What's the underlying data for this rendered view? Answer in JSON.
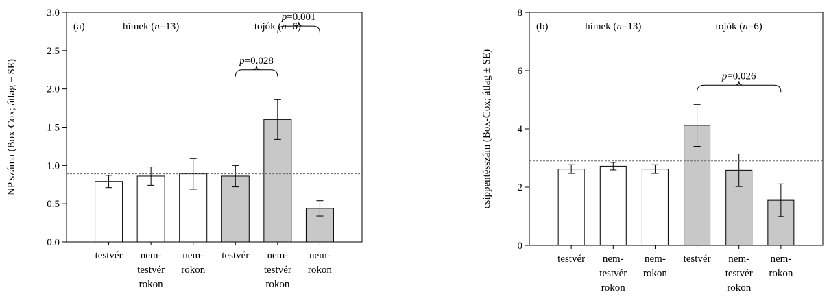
{
  "chart_data": [
    {
      "type": "bar",
      "panel_label": "(a)",
      "ylabel": "NP száma (Box-Cox; átlag ± SE)",
      "ylim": [
        0,
        3
      ],
      "yticks": [
        "0.0",
        "0.5",
        "1.0",
        "1.5",
        "2.0",
        "2.5",
        "3.0"
      ],
      "ytick_values": [
        0,
        0.5,
        1,
        1.5,
        2,
        2.5,
        3
      ],
      "categories": [
        [
          "testvér"
        ],
        [
          "nem-",
          "testvér",
          "rokon"
        ],
        [
          "nem-",
          "rokon"
        ],
        [
          "testvér"
        ],
        [
          "nem-",
          "testvér",
          "rokon"
        ],
        [
          "nem-",
          "rokon"
        ]
      ],
      "values": [
        0.79,
        0.86,
        0.89,
        0.86,
        1.6,
        0.44
      ],
      "errors": [
        0.08,
        0.12,
        0.2,
        0.14,
        0.26,
        0.1
      ],
      "group": [
        "himek",
        "himek",
        "himek",
        "tojok",
        "tojok",
        "tojok"
      ],
      "colors": {
        "himek": "#ffffff",
        "tojok": "#c8c8c8"
      },
      "reference_line": 0.89,
      "group_labels": [
        {
          "label": "hímek",
          "n_label": "n",
          "n_value": "=13)"
        },
        {
          "label": "tojók",
          "n_label": "n",
          "n_value": "=6)"
        }
      ],
      "annotations": [
        {
          "p": "p",
          "value": "=0.028",
          "from": 3,
          "to": 4,
          "level": 2.25
        },
        {
          "p": "p",
          "value": "=0.001",
          "from": 4,
          "to": 5,
          "level": 2.82
        }
      ]
    },
    {
      "type": "bar",
      "panel_label": "(b)",
      "ylabel": "csippentésszám (Box-Cox; átlag ± SE)",
      "ylim": [
        0,
        8
      ],
      "yticks": [
        "0",
        "2",
        "4",
        "6",
        "8"
      ],
      "ytick_values": [
        0,
        2,
        4,
        6,
        8
      ],
      "categories": [
        [
          "testvér"
        ],
        [
          "nem-",
          "testvér",
          "rokon"
        ],
        [
          "nem-",
          "rokon"
        ],
        [
          "testvér"
        ],
        [
          "nem-",
          "testvér",
          "rokon"
        ],
        [
          "nem-",
          "rokon"
        ]
      ],
      "values": [
        2.62,
        2.72,
        2.62,
        4.12,
        2.58,
        1.55
      ],
      "errors": [
        0.15,
        0.13,
        0.15,
        0.72,
        0.56,
        0.56
      ],
      "group": [
        "himek",
        "himek",
        "himek",
        "tojok",
        "tojok",
        "tojok"
      ],
      "colors": {
        "himek": "#ffffff",
        "tojok": "#c8c8c8"
      },
      "reference_line": 2.9,
      "group_labels": [
        {
          "label": "hímek",
          "n_label": "n",
          "n_value": "=13)"
        },
        {
          "label": "tojók",
          "n_label": "n",
          "n_value": "=6)"
        }
      ],
      "annotations": [
        {
          "p": "p",
          "value": "=0.026",
          "from": 3,
          "to": 5,
          "level": 5.5
        }
      ]
    }
  ]
}
